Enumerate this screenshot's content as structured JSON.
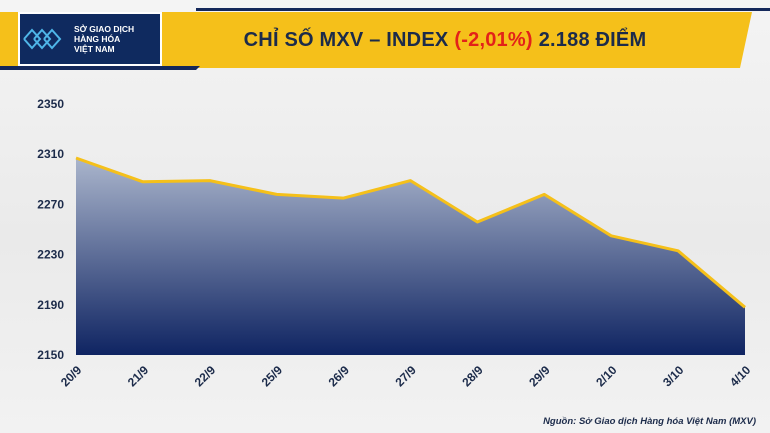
{
  "header": {
    "logo_lines": [
      "SỞ GIAO DỊCH",
      "HÀNG HÓA",
      "VIỆT NAM"
    ],
    "title_prefix": "CHỈ SỐ MXV – INDEX",
    "title_change": "(-2,01%)",
    "title_suffix": "2.188 ĐIỂM"
  },
  "colors": {
    "banner_yellow": "#f5c01a",
    "banner_navy": "#14285a",
    "line": "#f5c01a",
    "area_top": "#aab5cc",
    "area_bottom": "#0f2462",
    "change_red": "#e32119"
  },
  "source": "Nguồn: Sở Giao dịch Hàng hóa Việt Nam (MXV)",
  "chart_data": {
    "type": "area",
    "title": "CHỈ SỐ MXV – INDEX (-2,01%) 2.188 ĐIỂM",
    "categories": [
      "20/9",
      "21/9",
      "22/9",
      "25/9",
      "26/9",
      "27/9",
      "28/9",
      "29/9",
      "2/10",
      "3/10",
      "4/10"
    ],
    "values": [
      2307,
      2288,
      2289,
      2278,
      2275,
      2289,
      2256,
      2278,
      2245,
      2233,
      2188
    ],
    "ylim": [
      2150,
      2350
    ],
    "yticks": [
      2150,
      2190,
      2230,
      2270,
      2310,
      2350
    ],
    "grid": false,
    "legend": "none"
  }
}
